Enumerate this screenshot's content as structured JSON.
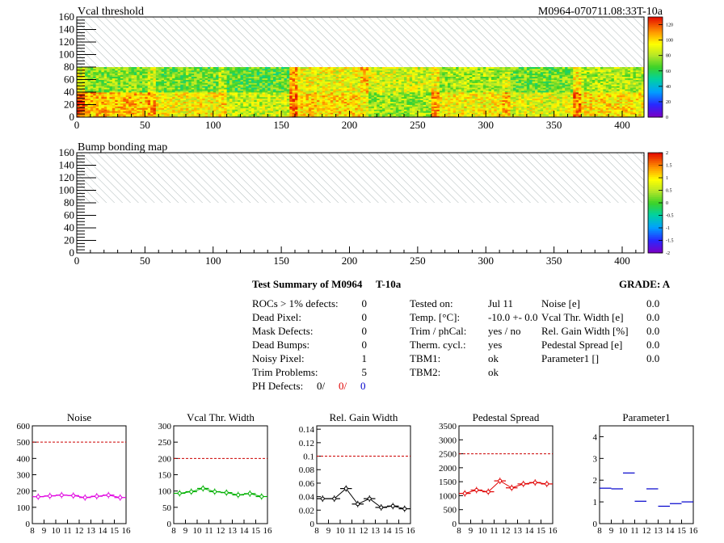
{
  "header": {
    "title": "Vcal threshold",
    "module_id": "M0964-070711.08:33T-10a"
  },
  "chart_data": [
    {
      "type": "heatmap",
      "title": "Vcal threshold",
      "xlim": [
        0,
        416
      ],
      "ylim": [
        0,
        160
      ],
      "x_ticks": [
        "0",
        "50",
        "100",
        "150",
        "200",
        "250",
        "300",
        "350",
        "400"
      ],
      "y_ticks": [
        "0",
        "20",
        "40",
        "60",
        "80",
        "100",
        "120",
        "140",
        "160"
      ],
      "hatched_region": [
        0,
        416,
        80,
        160
      ],
      "colorbar": {
        "min": 0,
        "max": 130,
        "ticks": [
          "0",
          "20",
          "40",
          "60",
          "80",
          "100",
          "120"
        ]
      },
      "roc_columns": 8,
      "roc_mean_levels": [
        105,
        75,
        95,
        72,
        85,
        68,
        100,
        92,
        78,
        88,
        95,
        80,
        90,
        72,
        98,
        82
      ]
    },
    {
      "type": "heatmap",
      "title": "Bump bonding map",
      "xlim": [
        0,
        416
      ],
      "ylim": [
        0,
        160
      ],
      "x_ticks": [
        "0",
        "50",
        "100",
        "150",
        "200",
        "250",
        "300",
        "350",
        "400"
      ],
      "y_ticks": [
        "0",
        "20",
        "40",
        "60",
        "80",
        "100",
        "120",
        "140",
        "160"
      ],
      "hatched_region": [
        0,
        416,
        80,
        160
      ],
      "colorbar": {
        "min": -2,
        "max": 2,
        "ticks": [
          "-2",
          "-1.5",
          "-1",
          "-0.5",
          "0",
          "0.5",
          "1",
          "1.5",
          "2"
        ]
      }
    },
    {
      "type": "line",
      "title": "Noise",
      "x": [
        8.5,
        9.5,
        10.5,
        11.5,
        12.5,
        13.5,
        14.5,
        15.5
      ],
      "values": [
        165,
        170,
        175,
        172,
        160,
        168,
        175,
        160
      ],
      "xlim": [
        8,
        16
      ],
      "ylim": [
        0,
        600
      ],
      "reference": 500,
      "color": "#e000e0",
      "x_ticks": [
        "8",
        "9",
        "10",
        "11",
        "12",
        "13",
        "14",
        "15",
        "16"
      ],
      "y_ticks": [
        "0",
        "100",
        "200",
        "300",
        "400",
        "500",
        "600"
      ]
    },
    {
      "type": "line",
      "title": "Vcal Thr. Width",
      "x": [
        8.5,
        9.5,
        10.5,
        11.5,
        12.5,
        13.5,
        14.5,
        15.5
      ],
      "values": [
        93,
        98,
        108,
        98,
        95,
        88,
        92,
        83
      ],
      "xlim": [
        8,
        16
      ],
      "ylim": [
        0,
        300
      ],
      "reference": 200,
      "color": "#00b000",
      "x_ticks": [
        "8",
        "9",
        "10",
        "11",
        "12",
        "13",
        "14",
        "15",
        "16"
      ],
      "y_ticks": [
        "0",
        "50",
        "100",
        "150",
        "200",
        "250",
        "300"
      ]
    },
    {
      "type": "line",
      "title": "Rel. Gain Width",
      "x": [
        8.5,
        9.5,
        10.5,
        11.5,
        12.5,
        13.5,
        14.5,
        15.5
      ],
      "values": [
        0.037,
        0.037,
        0.052,
        0.029,
        0.037,
        0.024,
        0.026,
        0.022
      ],
      "xlim": [
        8,
        16
      ],
      "ylim": [
        0,
        0.145
      ],
      "reference": 0.1,
      "color": "#000000",
      "x_ticks": [
        "8",
        "9",
        "10",
        "11",
        "12",
        "13",
        "14",
        "15",
        "16"
      ],
      "y_ticks": [
        "0",
        "0.02",
        "0.04",
        "0.06",
        "0.08",
        "0.1",
        "0.12",
        "0.14"
      ]
    },
    {
      "type": "line",
      "title": "Pedestal Spread",
      "x": [
        8.5,
        9.5,
        10.5,
        11.5,
        12.5,
        13.5,
        14.5,
        15.5
      ],
      "values": [
        1080,
        1200,
        1140,
        1530,
        1280,
        1420,
        1470,
        1420
      ],
      "xlim": [
        8,
        16
      ],
      "ylim": [
        0,
        3500
      ],
      "reference": 2500,
      "color": "#e00000",
      "x_ticks": [
        "8",
        "9",
        "10",
        "11",
        "12",
        "13",
        "14",
        "15",
        "16"
      ],
      "y_ticks": [
        "0",
        "500",
        "1000",
        "1500",
        "2000",
        "2500",
        "3000",
        "3500"
      ]
    },
    {
      "type": "scatter",
      "title": "Parameter1",
      "x": [
        8.5,
        9.5,
        10.5,
        11.5,
        12.5,
        13.5,
        14.5,
        15.5
      ],
      "values": [
        1.63,
        1.6,
        2.33,
        1.03,
        1.6,
        0.8,
        0.92,
        1.0
      ],
      "xlim": [
        8,
        16
      ],
      "ylim": [
        0,
        4.5
      ],
      "color": "#0000cc",
      "x_ticks": [
        "8",
        "9",
        "10",
        "11",
        "12",
        "13",
        "14",
        "15",
        "16"
      ],
      "y_ticks": [
        "0",
        "1",
        "2",
        "3",
        "4"
      ]
    }
  ],
  "summary": {
    "title": "Test Summary of M0964",
    "temp_label": "T-10a",
    "grade": "GRADE:  A",
    "defects": [
      {
        "label": "ROCs > 1% defects:",
        "value": "0"
      },
      {
        "label": "Dead Pixel:",
        "value": "0"
      },
      {
        "label": "Mask Defects:",
        "value": "0"
      },
      {
        "label": "Dead Bumps:",
        "value": "0"
      },
      {
        "label": "Noisy Pixel:",
        "value": "1"
      },
      {
        "label": "Trim Problems:",
        "value": "5"
      }
    ],
    "ph_defects": {
      "label": "PH Defects:",
      "v1": "0/",
      "v2": "0/",
      "v3": "0"
    },
    "conditions": [
      {
        "label": "Tested on:",
        "value": "Jul 11"
      },
      {
        "label": "Temp. [°C]:",
        "value": "-10.0 +- 0.0"
      },
      {
        "label": "Trim / phCal:",
        "value": "yes / no"
      },
      {
        "label": "Therm. cycl.:",
        "value": "yes"
      },
      {
        "label": "TBM1:",
        "value": "ok"
      },
      {
        "label": "TBM2:",
        "value": "ok"
      }
    ],
    "widths": [
      {
        "label": "Noise [e]",
        "value": "0.0"
      },
      {
        "label": "Vcal Thr. Width [e]",
        "value": "0.0"
      },
      {
        "label": "Rel. Gain Width [%]",
        "value": "0.0"
      },
      {
        "label": "Pedestal Spread [e]",
        "value": "0.0"
      },
      {
        "label": "Parameter1 []",
        "value": "0.0"
      }
    ]
  },
  "colors": {
    "reference_line": "#cc0000",
    "hatch": "#9aa8a8"
  }
}
